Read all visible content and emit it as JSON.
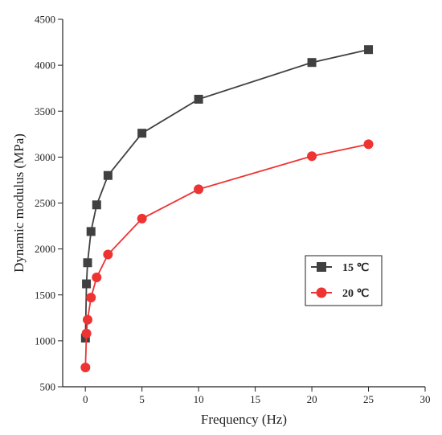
{
  "chart_data": {
    "type": "line",
    "title": "",
    "xlabel": "Frequency (Hz)",
    "ylabel": "Dynamic modulus (MPa)",
    "xlim": [
      -2,
      30
    ],
    "ylim": [
      500,
      4500
    ],
    "xticks": [
      0,
      5,
      10,
      15,
      20,
      25,
      30
    ],
    "yticks": [
      500,
      1000,
      1500,
      2000,
      2500,
      3000,
      3500,
      4000,
      4500
    ],
    "legend": "right-middle",
    "grid": false,
    "series": [
      {
        "name": "15 ℃",
        "color": "#404040",
        "marker": "square",
        "x": [
          0.01,
          0.1,
          0.2,
          0.5,
          1,
          2,
          5,
          10,
          20,
          25
        ],
        "y": [
          1030,
          1620,
          1850,
          2190,
          2480,
          2800,
          3260,
          3630,
          4030,
          4170
        ]
      },
      {
        "name": "20 ℃",
        "color": "#ee3333",
        "marker": "circle",
        "x": [
          0.01,
          0.1,
          0.2,
          0.5,
          1,
          2,
          5,
          10,
          20,
          25
        ],
        "y": [
          710,
          1080,
          1230,
          1470,
          1690,
          1940,
          2330,
          2650,
          3010,
          3140
        ]
      }
    ]
  }
}
